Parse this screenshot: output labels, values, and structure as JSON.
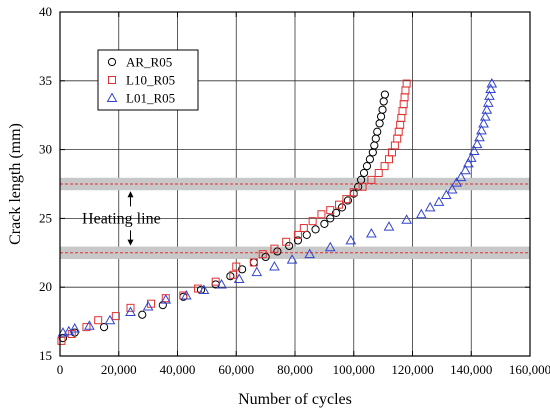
{
  "chart_data": {
    "type": "scatter",
    "xlabel": "Number of cycles",
    "ylabel": "Crack length (mm)",
    "xlim": [
      0,
      160000
    ],
    "ylim": [
      15,
      40
    ],
    "xticks": [
      0,
      20000,
      40000,
      60000,
      80000,
      100000,
      120000,
      140000,
      160000
    ],
    "xtick_labels": [
      "0",
      "20,000",
      "40,000",
      "60,000",
      "80,000",
      "100,000",
      "120,000",
      "140,000",
      "160,000"
    ],
    "yticks": [
      15,
      20,
      25,
      30,
      35,
      40
    ],
    "ytick_labels": [
      "15",
      "20",
      "25",
      "30",
      "35",
      "40"
    ],
    "grid": true,
    "legend_position": "top-left",
    "series": [
      {
        "name": "AR_R05",
        "marker": "circle",
        "color": "#000000",
        "points": [
          [
            1000,
            16.3
          ],
          [
            5000,
            16.7
          ],
          [
            15000,
            17.1
          ],
          [
            28000,
            18.0
          ],
          [
            35000,
            18.7
          ],
          [
            42000,
            19.3
          ],
          [
            48000,
            19.8
          ],
          [
            53000,
            20.2
          ],
          [
            58000,
            20.8
          ],
          [
            62000,
            21.3
          ],
          [
            66000,
            21.8
          ],
          [
            70000,
            22.2
          ],
          [
            74000,
            22.6
          ],
          [
            78000,
            23.0
          ],
          [
            81000,
            23.4
          ],
          [
            84000,
            23.8
          ],
          [
            87000,
            24.2
          ],
          [
            90000,
            24.6
          ],
          [
            92000,
            25.0
          ],
          [
            94000,
            25.4
          ],
          [
            96000,
            25.8
          ],
          [
            98000,
            26.3
          ],
          [
            100000,
            26.8
          ],
          [
            101500,
            27.3
          ],
          [
            102500,
            27.8
          ],
          [
            103500,
            28.3
          ],
          [
            104500,
            28.8
          ],
          [
            105500,
            29.3
          ],
          [
            106500,
            29.8
          ],
          [
            107000,
            30.3
          ],
          [
            107500,
            30.8
          ],
          [
            108000,
            31.3
          ],
          [
            108800,
            31.9
          ],
          [
            109300,
            32.4
          ],
          [
            109800,
            32.9
          ],
          [
            110200,
            33.5
          ],
          [
            110600,
            34.0
          ]
        ]
      },
      {
        "name": "L10_R05",
        "marker": "square",
        "color": "#e03030",
        "points": [
          [
            500,
            16.1
          ],
          [
            4000,
            16.6
          ],
          [
            9000,
            17.1
          ],
          [
            13000,
            17.6
          ],
          [
            19000,
            17.9
          ],
          [
            24000,
            18.5
          ],
          [
            31000,
            18.8
          ],
          [
            36000,
            19.2
          ],
          [
            42000,
            19.4
          ],
          [
            47000,
            19.9
          ],
          [
            53000,
            20.4
          ],
          [
            59000,
            20.9
          ],
          [
            60000,
            21.5
          ],
          [
            66000,
            21.8
          ],
          [
            69000,
            22.4
          ],
          [
            73000,
            22.8
          ],
          [
            77000,
            23.3
          ],
          [
            81000,
            23.8
          ],
          [
            83000,
            24.3
          ],
          [
            86000,
            24.8
          ],
          [
            89000,
            25.3
          ],
          [
            92000,
            25.6
          ],
          [
            95000,
            26.0
          ],
          [
            97500,
            26.4
          ],
          [
            100000,
            26.9
          ],
          [
            103000,
            27.3
          ],
          [
            106000,
            27.8
          ],
          [
            108500,
            28.3
          ],
          [
            110500,
            28.8
          ],
          [
            112000,
            29.3
          ],
          [
            113000,
            29.8
          ],
          [
            114000,
            30.3
          ],
          [
            114800,
            30.8
          ],
          [
            115300,
            31.3
          ],
          [
            115800,
            31.8
          ],
          [
            116200,
            32.3
          ],
          [
            116600,
            32.8
          ],
          [
            117000,
            33.3
          ],
          [
            117300,
            33.8
          ],
          [
            117600,
            34.3
          ],
          [
            118000,
            34.8
          ]
        ]
      },
      {
        "name": "L01_R05",
        "marker": "triangle",
        "color": "#3344cc",
        "points": [
          [
            1000,
            16.7
          ],
          [
            3000,
            16.8
          ],
          [
            5000,
            17.0
          ],
          [
            10000,
            17.2
          ],
          [
            17000,
            17.6
          ],
          [
            24000,
            18.2
          ],
          [
            30000,
            18.6
          ],
          [
            36000,
            19.1
          ],
          [
            43000,
            19.4
          ],
          [
            49000,
            19.8
          ],
          [
            55000,
            20.2
          ],
          [
            61000,
            20.6
          ],
          [
            67000,
            21.1
          ],
          [
            73000,
            21.5
          ],
          [
            79000,
            22.0
          ],
          [
            85000,
            22.4
          ],
          [
            92000,
            22.9
          ],
          [
            99000,
            23.4
          ],
          [
            106000,
            23.9
          ],
          [
            112000,
            24.4
          ],
          [
            118000,
            24.9
          ],
          [
            123000,
            25.3
          ],
          [
            126000,
            25.8
          ],
          [
            129000,
            26.2
          ],
          [
            131500,
            26.7
          ],
          [
            133500,
            27.1
          ],
          [
            135000,
            27.6
          ],
          [
            136500,
            28.0
          ],
          [
            138000,
            28.5
          ],
          [
            139000,
            29.0
          ],
          [
            140000,
            29.4
          ],
          [
            141000,
            29.9
          ],
          [
            142000,
            30.4
          ],
          [
            142800,
            30.9
          ],
          [
            143500,
            31.4
          ],
          [
            144200,
            31.9
          ],
          [
            144800,
            32.4
          ],
          [
            145300,
            32.9
          ],
          [
            145800,
            33.4
          ],
          [
            146200,
            33.9
          ],
          [
            146600,
            34.4
          ],
          [
            147000,
            34.8
          ]
        ]
      }
    ],
    "annotations": {
      "heating_label": "Heating line",
      "heating_lines": [
        22.5,
        27.5
      ],
      "band_half_width": 0.45,
      "band_color": "#c8c8c8",
      "dash_color": "#e03030"
    }
  }
}
